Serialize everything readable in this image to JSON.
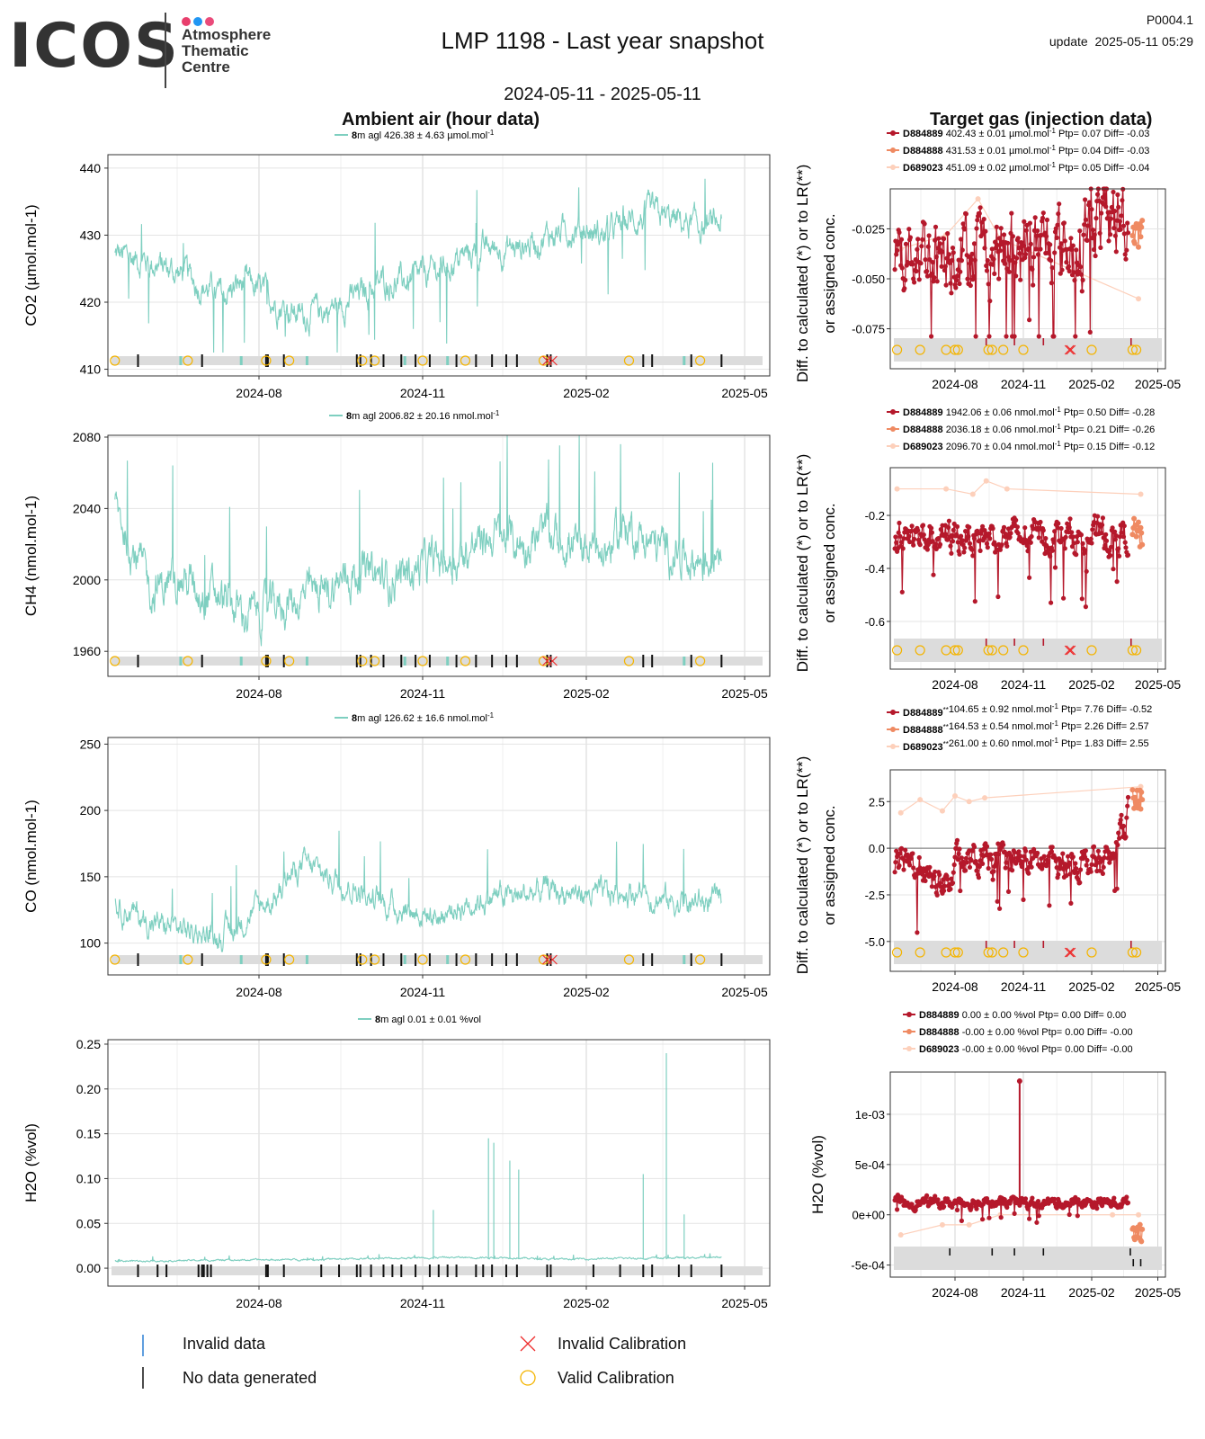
{
  "header": {
    "logo_text": "ICOS",
    "logo_lines": [
      "Atmosphere",
      "Thematic",
      "Centre"
    ],
    "logo_dot_colors": [
      "#e83e6c",
      "#2196f3",
      "#ea4b7a"
    ],
    "title": "LMP 1198 - Last year snapshot",
    "date_range": "2024-05-11 - 2025-05-11",
    "code": "P0004.1",
    "update": "update  2025-05-11 05:29",
    "ambient_heading": "Ambient air (hour data)",
    "target_heading": "Target gas (injection data)"
  },
  "colors": {
    "ambient_line": "#7ecfc0",
    "D884889": "#b5182b",
    "D884888": "#ef8a62",
    "D689023": "#fdd0bb",
    "valid_calibration": "#f4b400",
    "invalid_calibration": "#ee2c2c",
    "invalid_data": "#2a7fd4",
    "no_data": "#111111",
    "flag_band": "#dcdcdc",
    "grid": "#e8e8e8"
  },
  "bottom_legend": {
    "invalid_data": "Invalid data",
    "no_data": "No data generated",
    "invalid_calibration": "Invalid Calibration",
    "valid_calibration": "Valid Calibration"
  },
  "chart_data": [
    {
      "id": "ambient-co2",
      "type": "line",
      "ylabel": "CO2 (µmol.mol-1)",
      "legend": {
        "height": "8",
        "text": "m agl 426.38 ± 4.63 µmol.mol",
        "unit_sup": "-1"
      },
      "x_ticks": [
        "2024-08",
        "2024-11",
        "2025-02",
        "2025-05"
      ],
      "ylim": [
        409,
        442
      ],
      "y_ticks": [
        410,
        420,
        430,
        440
      ],
      "x_date_range": [
        "2024-05-11",
        "2025-05-11"
      ],
      "series_keypoints": [
        [
          "2024-05-12",
          427
        ],
        [
          "2024-06-01",
          426
        ],
        [
          "2024-06-20",
          424
        ],
        [
          "2024-07-10",
          421
        ],
        [
          "2024-07-25",
          423
        ],
        [
          "2024-08-10",
          420
        ],
        [
          "2024-08-25",
          418
        ],
        [
          "2024-09-10",
          419
        ],
        [
          "2024-09-25",
          421
        ],
        [
          "2024-10-10",
          423
        ],
        [
          "2024-10-25",
          423
        ],
        [
          "2024-11-10",
          425
        ],
        [
          "2024-11-25",
          427
        ],
        [
          "2024-12-10",
          428
        ],
        [
          "2024-12-25",
          428
        ],
        [
          "2025-01-10",
          430
        ],
        [
          "2025-01-25",
          431
        ],
        [
          "2025-02-10",
          430
        ],
        [
          "2025-02-25",
          432
        ],
        [
          "2025-03-10",
          433
        ],
        [
          "2025-03-25",
          432
        ],
        [
          "2025-04-10",
          431
        ],
        [
          "2025-04-18",
          432
        ]
      ],
      "noise": 2.2
    },
    {
      "id": "ambient-ch4",
      "type": "line",
      "ylabel": "CH4 (nmol.mol-1)",
      "legend": {
        "height": "8",
        "text": "m agl 2006.82 ± 20.16 nmol.mol",
        "unit_sup": "-1"
      },
      "x_ticks": [
        "2024-08",
        "2024-11",
        "2025-02",
        "2025-05"
      ],
      "ylim": [
        1946,
        2081
      ],
      "y_ticks": [
        1960,
        2000,
        2040,
        2080
      ],
      "x_date_range": [
        "2024-05-11",
        "2025-05-11"
      ],
      "series_keypoints": [
        [
          "2024-05-12",
          2040
        ],
        [
          "2024-06-01",
          1995
        ],
        [
          "2024-06-20",
          2000
        ],
        [
          "2024-07-10",
          1990
        ],
        [
          "2024-07-25",
          1980
        ],
        [
          "2024-08-10",
          1985
        ],
        [
          "2024-08-25",
          1990
        ],
        [
          "2024-09-10",
          1995
        ],
        [
          "2024-09-25",
          2005
        ],
        [
          "2024-10-10",
          2000
        ],
        [
          "2024-10-25",
          2005
        ],
        [
          "2024-11-10",
          2010
        ],
        [
          "2024-11-25",
          2015
        ],
        [
          "2024-12-10",
          2025
        ],
        [
          "2024-12-25",
          2020
        ],
        [
          "2025-01-10",
          2025
        ],
        [
          "2025-01-25",
          2020
        ],
        [
          "2025-02-10",
          2015
        ],
        [
          "2025-02-25",
          2030
        ],
        [
          "2025-03-10",
          2020
        ],
        [
          "2025-03-25",
          2015
        ],
        [
          "2025-04-10",
          2010
        ],
        [
          "2025-04-18",
          2025
        ]
      ],
      "noise": 12
    },
    {
      "id": "ambient-co",
      "type": "line",
      "ylabel": "CO (nmol.mol-1)",
      "legend": {
        "height": "8",
        "text": "m agl 126.62 ± 16.6 nmol.mol",
        "unit_sup": "-1"
      },
      "x_ticks": [
        "2024-08",
        "2024-11",
        "2025-02",
        "2025-05"
      ],
      "ylim": [
        76,
        255
      ],
      "y_ticks": [
        100,
        150,
        200,
        250
      ],
      "x_date_range": [
        "2024-05-11",
        "2025-05-11"
      ],
      "series_keypoints": [
        [
          "2024-05-12",
          130
        ],
        [
          "2024-06-01",
          115
        ],
        [
          "2024-06-20",
          110
        ],
        [
          "2024-07-10",
          105
        ],
        [
          "2024-07-20",
          115
        ],
        [
          "2024-08-10",
          135
        ],
        [
          "2024-08-25",
          160
        ],
        [
          "2024-09-10",
          150
        ],
        [
          "2024-09-25",
          140
        ],
        [
          "2024-10-10",
          130
        ],
        [
          "2024-10-25",
          125
        ],
        [
          "2024-11-10",
          120
        ],
        [
          "2024-11-25",
          130
        ],
        [
          "2024-12-10",
          135
        ],
        [
          "2024-12-25",
          135
        ],
        [
          "2025-01-10",
          140
        ],
        [
          "2025-01-25",
          138
        ],
        [
          "2025-02-10",
          135
        ],
        [
          "2025-02-25",
          140
        ],
        [
          "2025-03-10",
          135
        ],
        [
          "2025-03-25",
          130
        ],
        [
          "2025-04-10",
          130
        ],
        [
          "2025-04-18",
          135
        ]
      ],
      "noise": 10
    },
    {
      "id": "ambient-h2o",
      "type": "line",
      "ylabel": "H2O (%vol)",
      "legend": {
        "height": "8",
        "text": "m agl 0.01 ± 0.01 %vol",
        "unit_sup": ""
      },
      "x_ticks": [
        "2024-08",
        "2024-11",
        "2025-02",
        "2025-05"
      ],
      "ylim": [
        -0.02,
        0.255
      ],
      "y_ticks": [
        0.0,
        0.05,
        0.1,
        0.15,
        0.2,
        0.25
      ],
      "y_tick_labels": [
        "0.00",
        "0.05",
        "0.10",
        "0.15",
        "0.20",
        "0.25"
      ],
      "x_date_range": [
        "2024-05-11",
        "2025-05-11"
      ],
      "series_keypoints": [
        [
          "2024-05-12",
          0.008
        ],
        [
          "2024-07-20",
          0.009
        ],
        [
          "2024-09-10",
          0.01
        ],
        [
          "2024-11-10",
          0.012
        ],
        [
          "2024-12-01",
          0.012
        ],
        [
          "2024-12-20",
          0.012
        ],
        [
          "2025-01-10",
          0.01
        ],
        [
          "2025-02-25",
          0.011
        ],
        [
          "2025-04-18",
          0.012
        ]
      ],
      "spikes": [
        [
          "2024-11-07",
          0.065
        ],
        [
          "2024-12-08",
          0.145
        ],
        [
          "2024-12-11",
          0.14
        ],
        [
          "2024-12-20",
          0.12
        ],
        [
          "2024-12-25",
          0.11
        ],
        [
          "2025-03-05",
          0.105
        ],
        [
          "2025-03-18",
          0.24
        ],
        [
          "2025-03-28",
          0.06
        ]
      ],
      "noise": 0.001
    }
  ],
  "target_data": [
    {
      "id": "target-co2",
      "type": "scatter",
      "ylabel": [
        "Diff. to calculated (*) or to LR(**)",
        "or assigned conc."
      ],
      "legend": [
        {
          "cyl": "D884889",
          "mark": "",
          "text": "402.43 ± 0.01 µmol.mol",
          "sup": "-1",
          "rest": " Ptp= 0.07 Diff= -0.03"
        },
        {
          "cyl": "D884888",
          "mark": "",
          "text": "431.53 ± 0.01 µmol.mol",
          "sup": "-1",
          "rest": " Ptp= 0.04 Diff= -0.03"
        },
        {
          "cyl": "D689023",
          "mark": "",
          "text": "451.09 ± 0.02 µmol.mol",
          "sup": "-1",
          "rest": " Ptp= 0.05 Diff= -0.04"
        }
      ],
      "x_ticks": [
        "2024-08",
        "2024-11",
        "2025-02",
        "2025-05"
      ],
      "ylim": [
        -0.095,
        -0.005
      ],
      "y_ticks": [
        -0.075,
        -0.05,
        -0.025
      ],
      "y_tick_labels": [
        "-0.075",
        "-0.050",
        "-0.025"
      ],
      "zero_line": false,
      "main_mean": -0.035,
      "main_spread": 0.018,
      "orange_range": [
        -0.035,
        -0.018
      ],
      "pale_points": [
        [
          "2024-05-20",
          -0.035
        ],
        [
          "2024-07-20",
          -0.028
        ],
        [
          "2024-09-01",
          -0.01
        ],
        [
          "2024-10-01",
          -0.03
        ],
        [
          "2025-04-05",
          -0.06
        ]
      ]
    },
    {
      "id": "target-ch4",
      "type": "scatter",
      "ylabel": [
        "Diff. to calculated (*) or to LR(**)",
        "or assigned conc."
      ],
      "legend": [
        {
          "cyl": "D884889",
          "mark": "",
          "text": "1942.06 ± 0.06 nmol.mol",
          "sup": "-1",
          "rest": " Ptp= 0.50 Diff= -0.28"
        },
        {
          "cyl": "D884888",
          "mark": "",
          "text": "2036.18 ± 0.06 nmol.mol",
          "sup": "-1",
          "rest": " Ptp= 0.21 Diff= -0.26"
        },
        {
          "cyl": "D689023",
          "mark": "",
          "text": "2096.70 ± 0.04 nmol.mol",
          "sup": "-1",
          "rest": " Ptp= 0.15 Diff= -0.12"
        }
      ],
      "x_ticks": [
        "2024-08",
        "2024-11",
        "2025-02",
        "2025-05"
      ],
      "ylim": [
        -0.78,
        -0.02
      ],
      "y_ticks": [
        -0.6,
        -0.4,
        -0.2
      ],
      "y_tick_labels": [
        "-0.6",
        "-0.4",
        "-0.2"
      ],
      "zero_line": false,
      "main_mean": -0.28,
      "main_spread": 0.06,
      "orange_range": [
        -0.35,
        -0.2
      ],
      "pale_points": [
        [
          "2024-05-15",
          -0.1
        ],
        [
          "2024-07-20",
          -0.1
        ],
        [
          "2024-08-25",
          -0.12
        ],
        [
          "2024-09-12",
          -0.07
        ],
        [
          "2024-10-10",
          -0.1
        ],
        [
          "2025-04-08",
          -0.12
        ]
      ]
    },
    {
      "id": "target-co",
      "type": "scatter",
      "ylabel": [
        "Diff. to calculated (*) or to LR(**)",
        "or assigned conc."
      ],
      "legend": [
        {
          "cyl": "D884889",
          "mark": "**",
          "text": " 104.65 ± 0.92 nmol.mol",
          "sup": "-1",
          "rest": " Ptp= 7.76 Diff= -0.52"
        },
        {
          "cyl": "D884888",
          "mark": "**",
          "text": " 164.53 ± 0.54 nmol.mol",
          "sup": "-1",
          "rest": " Ptp= 2.26 Diff= 2.57"
        },
        {
          "cyl": "D689023",
          "mark": "**",
          "text": " 261.00 ± 0.60 nmol.mol",
          "sup": "-1",
          "rest": " Ptp= 1.83 Diff= 2.55"
        }
      ],
      "x_ticks": [
        "2024-08",
        "2024-11",
        "2025-02",
        "2025-05"
      ],
      "ylim": [
        -6.6,
        4.2
      ],
      "y_ticks": [
        -5.0,
        -2.5,
        0.0,
        2.5
      ],
      "y_tick_labels": [
        "-5.0",
        "-2.5",
        "0.0",
        "2.5"
      ],
      "zero_line": true,
      "main_mean": -0.8,
      "main_spread": 0.8,
      "orange_range": [
        2.0,
        3.2
      ],
      "pale_points": [
        [
          "2024-05-20",
          1.9
        ],
        [
          "2024-06-15",
          2.6
        ],
        [
          "2024-07-15",
          2.0
        ],
        [
          "2024-08-01",
          2.8
        ],
        [
          "2024-08-20",
          2.5
        ],
        [
          "2024-09-10",
          2.7
        ],
        [
          "2025-04-08",
          3.3
        ]
      ]
    },
    {
      "id": "target-h2o",
      "type": "scatter",
      "ylabel": [
        "H2O (%vol)"
      ],
      "legend": [
        {
          "cyl": "D884889",
          "mark": "",
          "text": " 0.00 ± 0.00 %vol Ptp= 0.00 Diff= 0.00",
          "sup": "",
          "rest": ""
        },
        {
          "cyl": "D884888",
          "mark": "",
          "text": " -0.00 ± 0.00 %vol Ptp= 0.00 Diff= -0.00",
          "sup": "",
          "rest": ""
        },
        {
          "cyl": "D689023",
          "mark": "",
          "text": " -0.00 ± 0.00 %vol Ptp= 0.00 Diff= -0.00",
          "sup": "",
          "rest": ""
        }
      ],
      "x_ticks": [
        "2024-08",
        "2024-11",
        "2025-02",
        "2025-05"
      ],
      "ylim": [
        -0.00062,
        0.00142
      ],
      "y_ticks": [
        -0.0005,
        0.0,
        0.0005,
        0.001
      ],
      "y_tick_labels": [
        "-5e-04",
        "0e+00",
        "5e-04",
        "1e-03"
      ],
      "zero_line": false,
      "main_mean": 0.00012,
      "main_spread": 5e-05,
      "orange_range": [
        -0.00028,
        -5e-05
      ],
      "pale_points": [
        [
          "2024-05-20",
          -0.0002
        ],
        [
          "2024-07-15",
          -0.0001
        ],
        [
          "2024-08-20",
          -0.0001
        ],
        [
          "2024-10-01",
          0.0
        ],
        [
          "2025-03-01",
          0.0
        ],
        [
          "2025-04-05",
          0.0
        ]
      ]
    }
  ]
}
